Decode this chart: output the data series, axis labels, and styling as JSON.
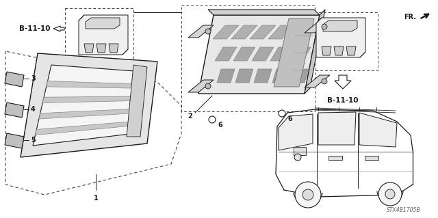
{
  "bg_color": "#ffffff",
  "line_color": "#1a1a1a",
  "dash_color": "#444444",
  "diagram_code": "STX4B1705B",
  "fr_text": "FR.",
  "b1110": "B-11-10",
  "labels": {
    "1": "1",
    "2": "2",
    "3": "3",
    "4": "4",
    "5": "5",
    "6": "6"
  }
}
